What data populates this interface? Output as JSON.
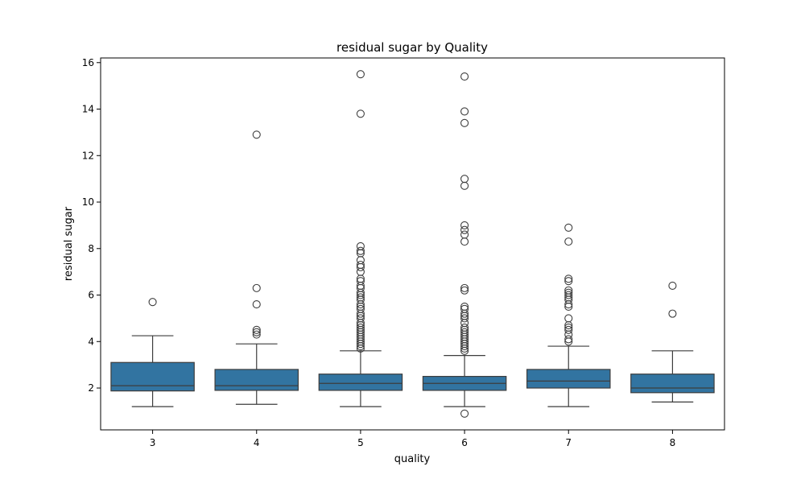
{
  "chart_data": {
    "type": "box",
    "title": "residual sugar by Quality",
    "xlabel": "quality",
    "ylabel": "residual sugar",
    "categories": [
      "3",
      "4",
      "5",
      "6",
      "7",
      "8"
    ],
    "ylim": [
      0.2,
      16.2
    ],
    "yticks": [
      2,
      4,
      6,
      8,
      10,
      12,
      14,
      16
    ],
    "yticklabels": [
      "2",
      "4",
      "6",
      "8",
      "10",
      "12",
      "14",
      "16"
    ],
    "box_color": "#3274a1",
    "line_color": "#3d3d3d",
    "grid": false,
    "boxes": [
      {
        "category": "3",
        "whisker_low": 1.2,
        "q1": 1.875,
        "median": 2.1,
        "q3": 3.1,
        "whisker_high": 4.25,
        "outliers": [
          5.7
        ]
      },
      {
        "category": "4",
        "whisker_low": 1.3,
        "q1": 1.9,
        "median": 2.1,
        "q3": 2.8,
        "whisker_high": 3.9,
        "outliers": [
          4.3,
          4.4,
          4.5,
          5.6,
          6.3,
          12.9
        ]
      },
      {
        "category": "5",
        "whisker_low": 1.2,
        "q1": 1.9,
        "median": 2.2,
        "q3": 2.6,
        "whisker_high": 3.6,
        "outliers": [
          3.7,
          3.8,
          3.9,
          4.0,
          4.1,
          4.2,
          4.3,
          4.4,
          4.5,
          4.6,
          4.7,
          4.8,
          5.0,
          5.1,
          5.2,
          5.4,
          5.5,
          5.6,
          5.8,
          5.9,
          6.0,
          6.1,
          6.3,
          6.4,
          6.6,
          6.7,
          7.0,
          7.2,
          7.3,
          7.5,
          7.8,
          7.9,
          8.1,
          13.8,
          15.5
        ]
      },
      {
        "category": "6",
        "whisker_low": 1.2,
        "q1": 1.9,
        "median": 2.2,
        "q3": 2.5,
        "whisker_high": 3.4,
        "outliers": [
          0.9,
          3.6,
          3.7,
          3.8,
          3.9,
          4.0,
          4.1,
          4.2,
          4.3,
          4.4,
          4.5,
          4.6,
          4.8,
          5.0,
          5.1,
          5.2,
          5.4,
          5.5,
          6.2,
          6.3,
          8.3,
          8.6,
          8.8,
          9.0,
          10.7,
          11.0,
          13.4,
          13.9,
          15.4
        ]
      },
      {
        "category": "7",
        "whisker_low": 1.2,
        "q1": 2.0,
        "median": 2.3,
        "q3": 2.8,
        "whisker_high": 3.8,
        "outliers": [
          4.0,
          4.1,
          4.3,
          4.5,
          4.6,
          4.7,
          5.0,
          5.5,
          5.6,
          5.8,
          5.9,
          6.0,
          6.1,
          6.2,
          6.6,
          6.7,
          8.3,
          8.9
        ]
      },
      {
        "category": "8",
        "whisker_low": 1.4,
        "q1": 1.8,
        "median": 2.0,
        "q3": 2.6,
        "whisker_high": 3.6,
        "outliers": [
          5.2,
          6.4
        ]
      }
    ]
  }
}
